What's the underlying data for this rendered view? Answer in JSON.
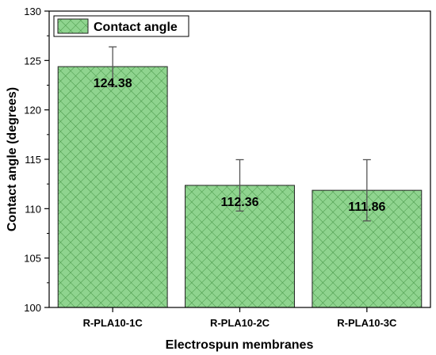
{
  "chart_data": {
    "type": "bar",
    "title": "",
    "xlabel": "Electrospun membranes",
    "ylabel": "Contact angle (degrees)",
    "ylim": [
      100,
      130
    ],
    "yticks": [
      100,
      105,
      110,
      115,
      120,
      125,
      130
    ],
    "categories": [
      "R-PLA10-1C",
      "R-PLA10-2C",
      "R-PLA10-3C"
    ],
    "series": [
      {
        "name": "Contact angle",
        "values": [
          124.38,
          112.36,
          111.86
        ],
        "errors": [
          2.0,
          2.6,
          3.1
        ]
      }
    ],
    "data_labels": [
      "124.38",
      "112.36",
      "111.86"
    ],
    "legend_position": "top-left",
    "grid": false,
    "bar_fill_color": "#8fd48f",
    "bar_hatch_color": "#3f8f3f",
    "bar_edge_color": "#222222",
    "error_bar_color": "#555555"
  }
}
